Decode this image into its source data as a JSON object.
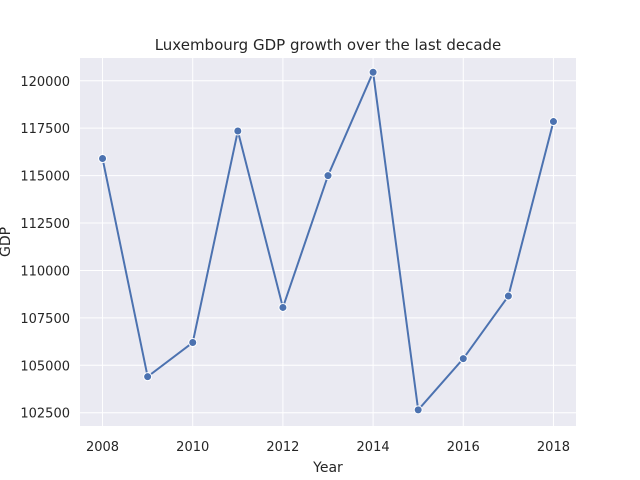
{
  "chart_data": {
    "type": "line",
    "title": "Luxembourg GDP growth over the last decade",
    "xlabel": "Year",
    "ylabel": "GDP",
    "x": [
      2008,
      2009,
      2010,
      2011,
      2012,
      2013,
      2014,
      2015,
      2016,
      2017,
      2018
    ],
    "series": [
      {
        "values": [
          115900,
          104400,
          106200,
          117350,
          108050,
          115000,
          120450,
          102650,
          105350,
          108650,
          117850
        ]
      }
    ],
    "xlim": [
      2007.5,
      2018.5
    ],
    "ylim": [
      101800,
      121200
    ],
    "xticks": [
      "2008",
      "2010",
      "2012",
      "2014",
      "2016",
      "2018"
    ],
    "yticks": [
      "102500",
      "105000",
      "107500",
      "110000",
      "112500",
      "115000",
      "117500",
      "120000"
    ],
    "grid": true,
    "colors": {
      "background": "#eaeaf2",
      "grid": "#ffffff",
      "line": "#4c72b0"
    }
  }
}
